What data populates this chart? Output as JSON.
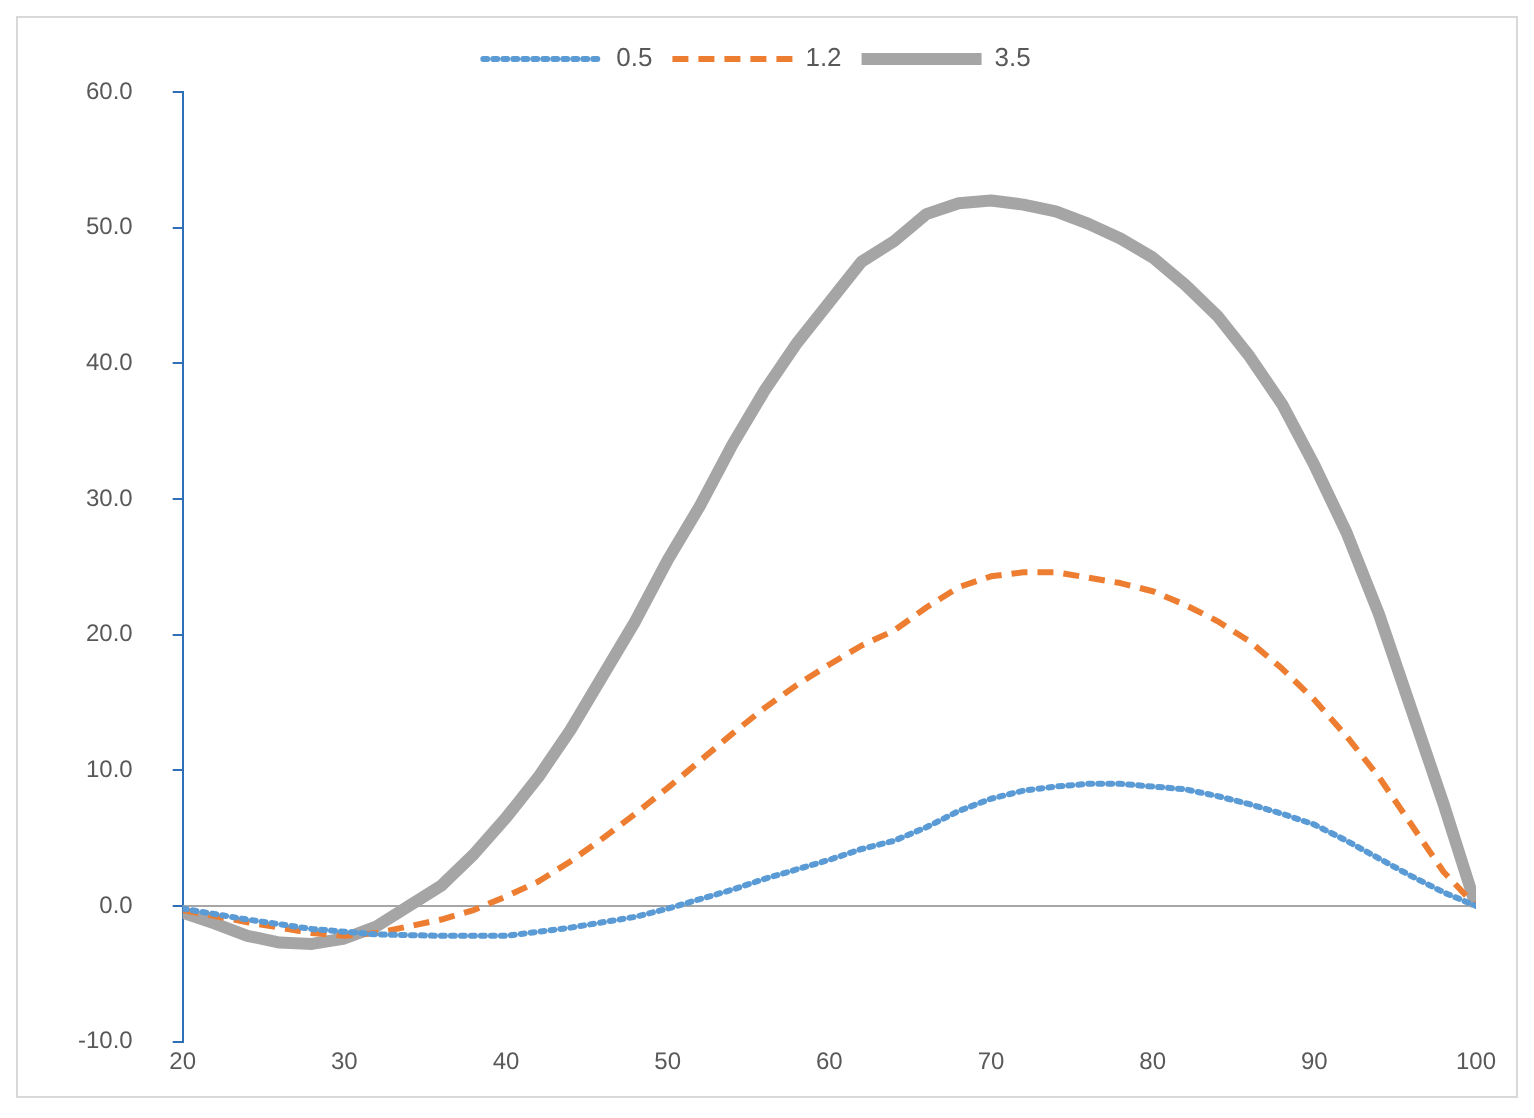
{
  "chart_data": {
    "type": "line",
    "legend": "top",
    "grid": false,
    "ref_lines": [
      {
        "axis": "y",
        "value": 0,
        "color": "#a6a6a6"
      }
    ],
    "xlim": [
      20,
      100
    ],
    "xticks": [
      20,
      30,
      40,
      50,
      60,
      70,
      80,
      90,
      100
    ],
    "ylim": [
      -10,
      60
    ],
    "yticks": [
      {
        "value": -10,
        "label": "-10.0"
      },
      {
        "value": 0,
        "label": "0.0"
      },
      {
        "value": 10,
        "label": "10.0"
      },
      {
        "value": 20,
        "label": "20.0"
      },
      {
        "value": 30,
        "label": "30.0"
      },
      {
        "value": 40,
        "label": "40.0"
      },
      {
        "value": 50,
        "label": "50.0"
      },
      {
        "value": 60,
        "label": "60.0"
      }
    ],
    "series": [
      {
        "name": "0.5",
        "color": "#5b9bd5",
        "line_style": "dotted",
        "x": [
          20,
          24,
          28,
          32,
          36,
          40,
          44,
          48,
          50,
          52,
          54,
          56,
          58,
          60,
          62,
          64,
          66,
          68,
          70,
          72,
          74,
          76,
          78,
          80,
          82,
          84,
          86,
          88,
          90,
          92,
          94,
          96,
          98,
          100
        ],
        "values": [
          -0.2,
          -1,
          -1.7,
          -2.1,
          -2.2,
          -2.2,
          -1.6,
          -0.8,
          -0.2,
          0.5,
          1.2,
          2,
          2.7,
          3.4,
          4.2,
          4.8,
          5.8,
          7,
          7.9,
          8.5,
          8.8,
          9,
          9,
          8.8,
          8.6,
          8.1,
          7.5,
          6.8,
          6,
          4.8,
          3.5,
          2.2,
          1,
          0
        ]
      },
      {
        "name": "1.2",
        "color": "#ed7d31",
        "line_style": "dashed",
        "x": [
          20,
          24,
          28,
          30,
          32,
          34,
          36,
          38,
          40,
          42,
          44,
          46,
          48,
          50,
          52,
          54,
          56,
          58,
          60,
          62,
          64,
          66,
          68,
          70,
          72,
          74,
          76,
          78,
          80,
          82,
          84,
          86,
          88,
          90,
          92,
          94,
          96,
          98,
          100
        ],
        "values": [
          -0.3,
          -1.2,
          -2,
          -2.2,
          -2,
          -1.5,
          -1,
          -0.3,
          0.7,
          1.8,
          3.3,
          5,
          6.8,
          8.7,
          10.7,
          12.7,
          14.6,
          16.3,
          17.8,
          19.2,
          20.3,
          22,
          23.5,
          24.3,
          24.6,
          24.6,
          24.2,
          23.8,
          23.2,
          22.2,
          21,
          19.5,
          17.5,
          15.2,
          12.5,
          9.5,
          6,
          2.5,
          0
        ]
      },
      {
        "name": "3.5",
        "color": "#a5a5a5",
        "line_style": "solid",
        "x": [
          20,
          22,
          24,
          26,
          28,
          30,
          32,
          34,
          36,
          38,
          40,
          42,
          44,
          46,
          48,
          50,
          52,
          54,
          56,
          58,
          60,
          62,
          64,
          66,
          68,
          70,
          72,
          74,
          76,
          78,
          80,
          82,
          84,
          86,
          88,
          90,
          92,
          94,
          96,
          98,
          100
        ],
        "values": [
          -0.5,
          -1.3,
          -2.2,
          -2.7,
          -2.8,
          -2.4,
          -1.5,
          0,
          1.5,
          3.8,
          6.5,
          9.5,
          13,
          17,
          21,
          25.5,
          29.5,
          34,
          38,
          41.5,
          44.5,
          47.5,
          49,
          51,
          51.8,
          52,
          51.7,
          51.2,
          50.3,
          49.2,
          47.8,
          45.8,
          43.5,
          40.5,
          37,
          32.5,
          27.5,
          21.5,
          14.5,
          7.5,
          0
        ]
      }
    ]
  }
}
